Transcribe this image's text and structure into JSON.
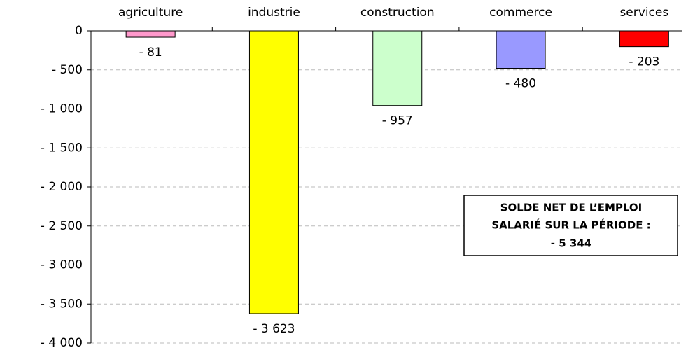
{
  "chart_data": {
    "type": "bar",
    "categories": [
      "agriculture",
      "industrie",
      "construction",
      "commerce",
      "services"
    ],
    "values": [
      -81,
      -3623,
      -957,
      -480,
      -203
    ],
    "value_labels": [
      "- 81",
      "- 3 623",
      "- 957",
      "- 480",
      "- 203"
    ],
    "colors": [
      "#ff99cc",
      "#ffff00",
      "#ccffcc",
      "#9999ff",
      "#ff0000"
    ],
    "ylim": [
      -4000,
      0
    ],
    "yticks": [
      0,
      {
        "value": -500,
        "label": "- 500"
      },
      {
        "value": -1000,
        "label": "- 1 000"
      },
      {
        "value": -1500,
        "label": "- 1 500"
      },
      {
        "value": -2000,
        "label": "- 2 000"
      },
      {
        "value": -2500,
        "label": "- 2 500"
      },
      {
        "value": -3000,
        "label": "- 3 000"
      },
      {
        "value": -3500,
        "label": "- 3 500"
      },
      {
        "value": -4000,
        "label": "- 4 000"
      }
    ],
    "grid": true,
    "annotation": [
      "SOLDE NET DE L’EMPLOI",
      "SALARIÉ SUR LA PÉRIODE :",
      "- 5 344"
    ]
  }
}
